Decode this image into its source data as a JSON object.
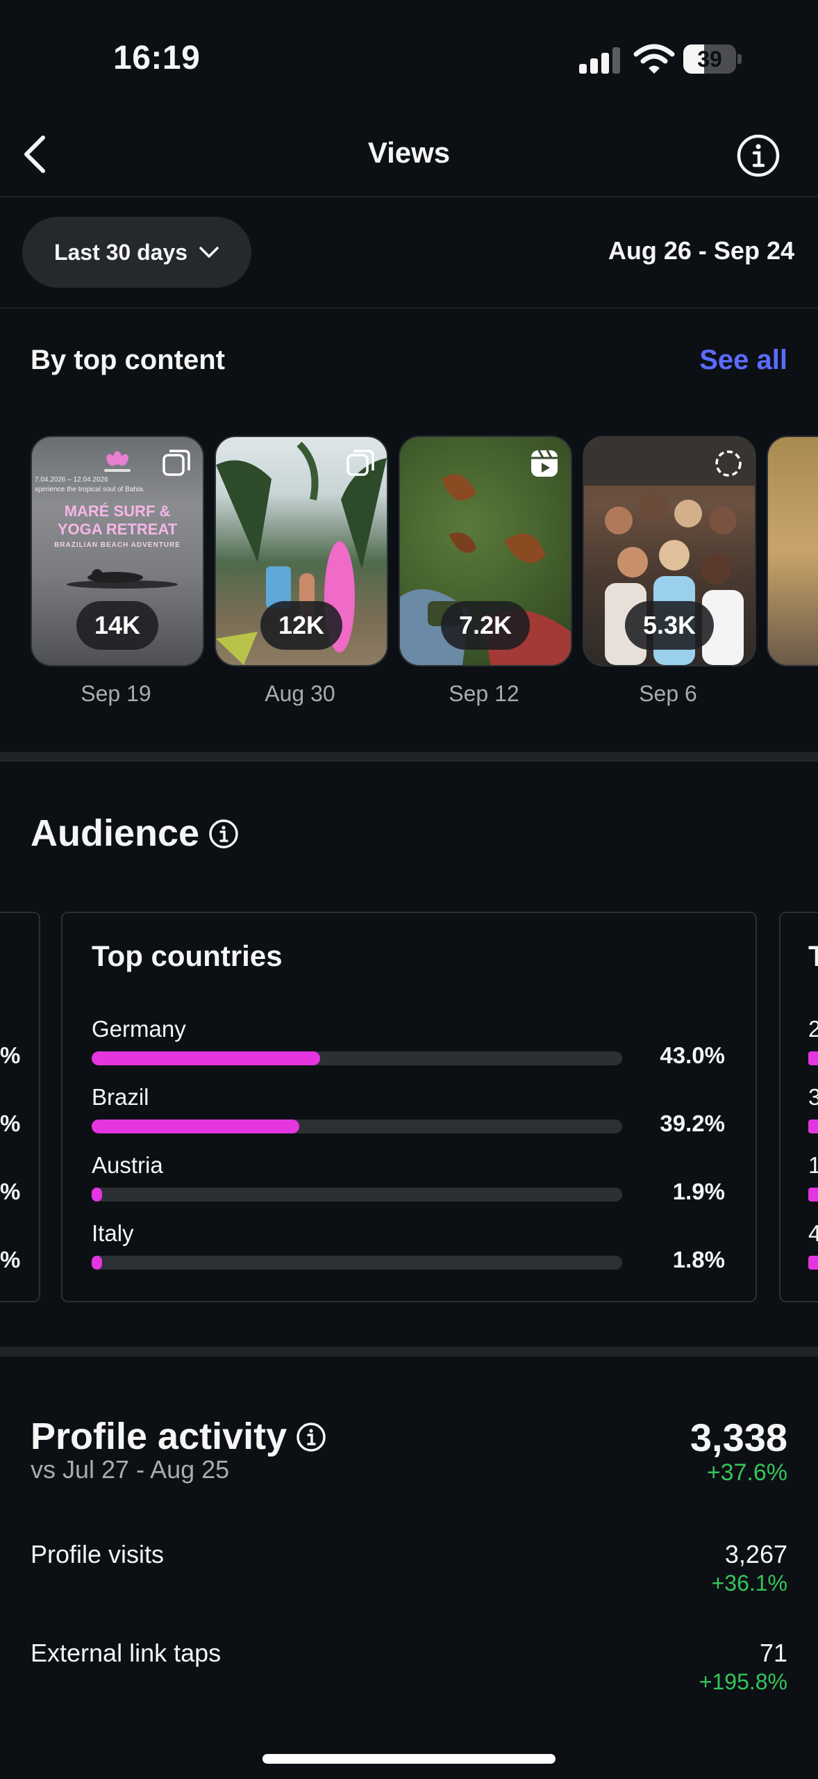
{
  "status_bar": {
    "time": "16:19",
    "battery": "39",
    "battery_level": 0.39
  },
  "header": {
    "title": "Views"
  },
  "filter": {
    "range_label": "Last 30 days",
    "date_range": "Aug 26 - Sep 24"
  },
  "top_content": {
    "heading": "By top content",
    "see_all": "See all",
    "items": [
      {
        "count": "14K",
        "date": "Sep 19",
        "type": "carousel",
        "poster": {
          "dates": "7.04.2026 – 12.04.2026",
          "line": "xperience the tropical soul of Bahia.",
          "headline1": "MARÉ SURF &",
          "headline2": "YOGA RETREAT",
          "sub": "BRAZILIAN BEACH ADVENTURE"
        }
      },
      {
        "count": "12K",
        "date": "Aug 30",
        "type": "carousel"
      },
      {
        "count": "7.2K",
        "date": "Sep 12",
        "type": "reel"
      },
      {
        "count": "5.3K",
        "date": "Sep 6",
        "type": "story"
      }
    ]
  },
  "audience": {
    "heading": "Audience",
    "top_countries": {
      "title": "Top countries",
      "rows": [
        {
          "label": "Germany",
          "pct": "43.0%",
          "value": 43.0
        },
        {
          "label": "Brazil",
          "pct": "39.2%",
          "value": 39.2
        },
        {
          "label": "Austria",
          "pct": "1.9%",
          "value": 1.9
        },
        {
          "label": "Italy",
          "pct": "1.8%",
          "value": 1.8
        }
      ]
    },
    "next_card_initial": "T",
    "next_card_row_initials": [
      "2",
      "3",
      "1",
      "4"
    ],
    "prev_card_edge": [
      "%",
      "%",
      "%",
      "%"
    ]
  },
  "profile_activity": {
    "title": "Profile activity",
    "compare": "vs Jul 27 - Aug 25",
    "total": "3,338",
    "total_delta": "+37.6%",
    "metrics": [
      {
        "label": "Profile visits",
        "value": "3,267",
        "delta": "+36.1%"
      },
      {
        "label": "External link taps",
        "value": "71",
        "delta": "+195.8%"
      }
    ]
  },
  "colors": {
    "accent": "#5b6bff",
    "bar": "#e535e0",
    "positive": "#35c55a",
    "background": "#0c1014"
  }
}
